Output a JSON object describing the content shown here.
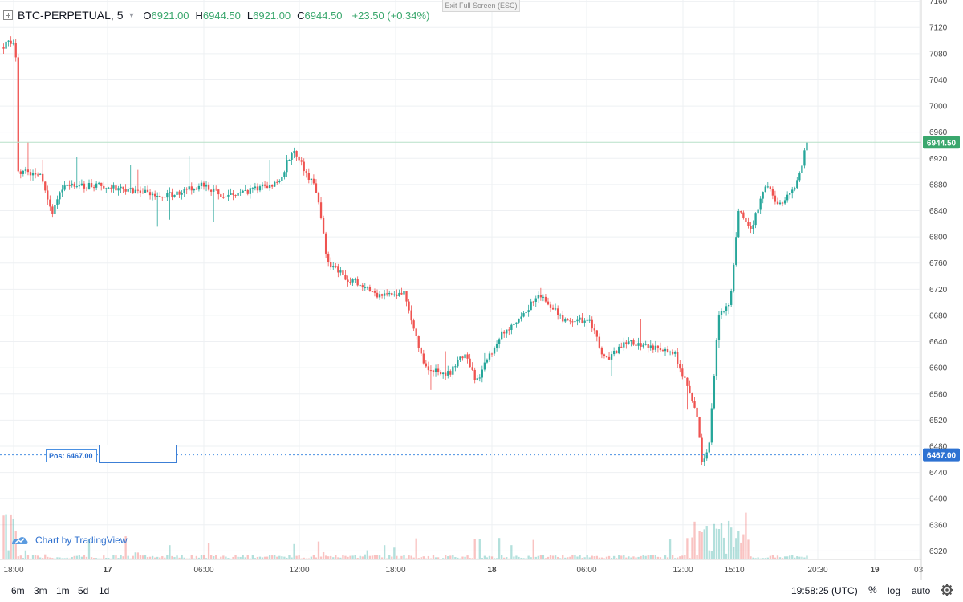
{
  "header": {
    "symbol": "BTC-PERPETUAL, 5",
    "open_label": "O",
    "open": "6921.00",
    "high_label": "H",
    "high": "6944.50",
    "low_label": "L",
    "low": "6921.00",
    "close_label": "C",
    "close": "6944.50",
    "change": "+23.50 (+0.34%)",
    "exit_fullscreen": "Exit Full Screen (ESC)"
  },
  "position": {
    "label": "Pos: 6467.00",
    "price": 6467,
    "price_tag": "6467.00"
  },
  "last_price": {
    "value": 6944.5,
    "tag": "6944.50"
  },
  "watermark": "Chart by TradingView",
  "bottom_bar": {
    "timeframes": [
      "6m",
      "3m",
      "1m",
      "5d",
      "1d"
    ],
    "clock": "19:58:25 (UTC)",
    "percent": "%",
    "log": "log",
    "auto": "auto"
  },
  "colors": {
    "up": "#26a69a",
    "down": "#ef5350",
    "pos_line": "#4a90e2",
    "last_price_tag": "#3aa76d",
    "grid": "#eef0f3"
  },
  "icons": [
    "symbol-square-icon",
    "caret-down-icon",
    "tradingview-logo-icon",
    "gear-icon"
  ],
  "chart_data": {
    "type": "candlestick",
    "title": "BTC-PERPETUAL, 5",
    "y_axis": {
      "ticks": [
        7160,
        7120,
        7080,
        7040,
        7000,
        6960,
        6920,
        6880,
        6840,
        6800,
        6760,
        6720,
        6680,
        6640,
        6600,
        6560,
        6520,
        6480,
        6440,
        6400,
        6360,
        6320
      ],
      "range": [
        6307,
        7162
      ]
    },
    "x_axis": {
      "ticks": [
        "18:00",
        "17",
        "06:00",
        "12:00",
        "18:00",
        "18",
        "06:00",
        "12:00",
        "15:10",
        "20:30",
        "19",
        "03:"
      ],
      "bold_ticks": [
        "17",
        "18",
        "19"
      ]
    },
    "price_path": [
      {
        "t": 0,
        "p": 7090
      },
      {
        "t": 0.012,
        "p": 7100
      },
      {
        "t": 0.018,
        "p": 7095
      },
      {
        "t": 0.02,
        "p": 6900
      },
      {
        "t": 0.05,
        "p": 6895
      },
      {
        "t": 0.062,
        "p": 6835
      },
      {
        "t": 0.075,
        "p": 6875
      },
      {
        "t": 0.12,
        "p": 6880
      },
      {
        "t": 0.17,
        "p": 6870
      },
      {
        "t": 0.2,
        "p": 6860
      },
      {
        "t": 0.25,
        "p": 6880
      },
      {
        "t": 0.28,
        "p": 6860
      },
      {
        "t": 0.32,
        "p": 6875
      },
      {
        "t": 0.345,
        "p": 6885
      },
      {
        "t": 0.362,
        "p": 6935
      },
      {
        "t": 0.392,
        "p": 6870
      },
      {
        "t": 0.405,
        "p": 6760
      },
      {
        "t": 0.425,
        "p": 6740
      },
      {
        "t": 0.47,
        "p": 6710
      },
      {
        "t": 0.5,
        "p": 6715
      },
      {
        "t": 0.525,
        "p": 6600
      },
      {
        "t": 0.555,
        "p": 6590
      },
      {
        "t": 0.575,
        "p": 6620
      },
      {
        "t": 0.59,
        "p": 6580
      },
      {
        "t": 0.62,
        "p": 6650
      },
      {
        "t": 0.67,
        "p": 6712
      },
      {
        "t": 0.7,
        "p": 6670
      },
      {
        "t": 0.73,
        "p": 6675
      },
      {
        "t": 0.75,
        "p": 6610
      },
      {
        "t": 0.775,
        "p": 6640
      },
      {
        "t": 0.81,
        "p": 6630
      },
      {
        "t": 0.835,
        "p": 6625
      },
      {
        "t": 0.855,
        "p": 6560
      },
      {
        "t": 0.865,
        "p": 6520
      },
      {
        "t": 0.87,
        "p": 6450
      },
      {
        "t": 0.878,
        "p": 6475
      },
      {
        "t": 0.89,
        "p": 6680
      },
      {
        "t": 0.905,
        "p": 6700
      },
      {
        "t": 0.915,
        "p": 6840
      },
      {
        "t": 0.93,
        "p": 6810
      },
      {
        "t": 0.95,
        "p": 6880
      },
      {
        "t": 0.965,
        "p": 6845
      },
      {
        "t": 0.98,
        "p": 6870
      },
      {
        "t": 0.99,
        "p": 6890
      },
      {
        "t": 1.0,
        "p": 6944.5
      }
    ]
  }
}
